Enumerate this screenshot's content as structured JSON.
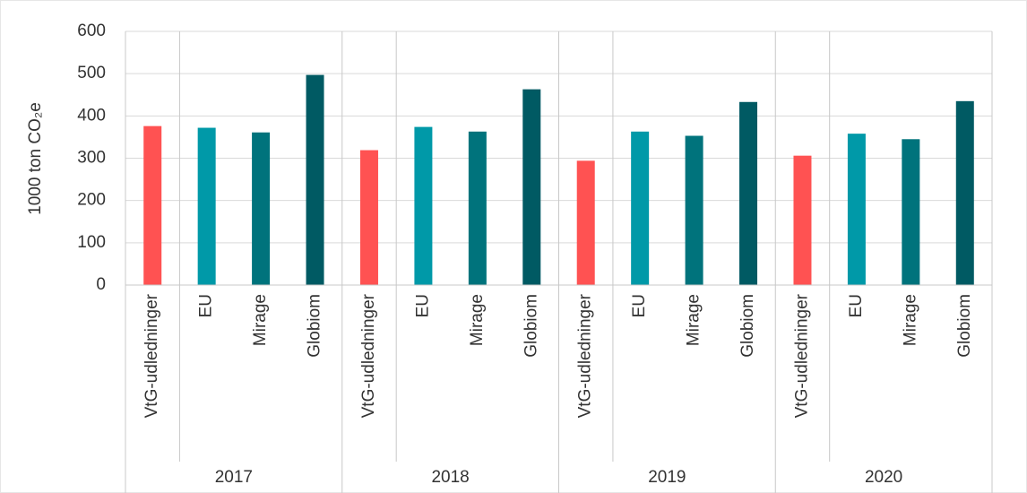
{
  "chart_data": {
    "type": "bar",
    "y_label": "1000 ton CO₂e",
    "categories": [
      "VtG-udledninger",
      "EU",
      "Mirage",
      "Globiom"
    ],
    "colors": [
      "#ff5252",
      "#0099a8",
      "#00737c",
      "#005a63"
    ],
    "groups": [
      {
        "label": "2017",
        "values": [
          376,
          372,
          361,
          497
        ]
      },
      {
        "label": "2018",
        "values": [
          319,
          374,
          363,
          463
        ]
      },
      {
        "label": "2019",
        "values": [
          294,
          363,
          353,
          433
        ]
      },
      {
        "label": "2020",
        "values": [
          306,
          358,
          345,
          435
        ]
      }
    ],
    "ylim": [
      0,
      600
    ],
    "yticks": [
      0,
      100,
      200,
      300,
      400,
      500,
      600
    ],
    "grid": true
  }
}
